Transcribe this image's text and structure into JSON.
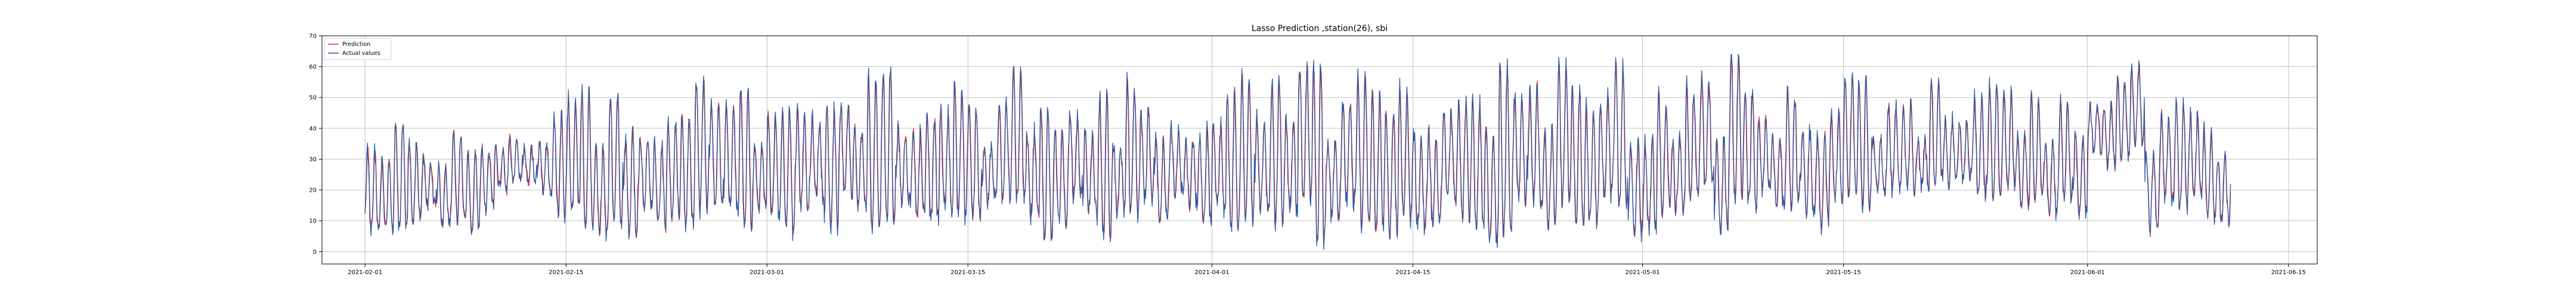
{
  "chart_data": {
    "type": "line",
    "title": "Lasso Prediction ,station(26), sbi",
    "xlabel": "",
    "ylabel": "",
    "grid": true,
    "legend_placement": "top-left",
    "x_range": [
      "2021-01-29",
      "2021-06-17"
    ],
    "y_range": [
      -4,
      70
    ],
    "x_ticks": [
      "2021-02-01",
      "2021-02-15",
      "2021-03-01",
      "2021-03-15",
      "2021-04-01",
      "2021-04-15",
      "2021-05-01",
      "2021-05-15",
      "2021-06-01",
      "2021-06-15"
    ],
    "y_ticks": [
      0,
      10,
      20,
      30,
      40,
      50,
      60,
      70
    ],
    "data_start": "2021-02-01",
    "data_end": "2021-06-11",
    "colors": {
      "prediction": "#e8272a",
      "actual": "#2a5aa5"
    },
    "series": [
      {
        "name": "Prediction",
        "color": "#e8272a"
      },
      {
        "name": "Actual values",
        "color": "#2a5aa5"
      }
    ],
    "segments": [
      {
        "start": "2021-02-01",
        "end": "2021-02-10",
        "min": 3,
        "max": 45
      },
      {
        "start": "2021-02-10",
        "end": "2021-02-14",
        "min": 15,
        "max": 48
      },
      {
        "start": "2021-02-14",
        "end": "2021-03-04",
        "min": 2,
        "max": 57
      },
      {
        "start": "2021-03-04",
        "end": "2021-04-07",
        "min": 2,
        "max": 60
      },
      {
        "start": "2021-04-07",
        "end": "2021-05-05",
        "min": 0,
        "max": 63
      },
      {
        "start": "2021-05-05",
        "end": "2021-05-15",
        "min": 3,
        "max": 64
      },
      {
        "start": "2021-05-15",
        "end": "2021-06-01",
        "min": 10,
        "max": 58
      },
      {
        "start": "2021-06-01",
        "end": "2021-06-05",
        "min": 25,
        "max": 62
      },
      {
        "start": "2021-06-05",
        "end": "2021-06-11",
        "min": 5,
        "max": 50
      }
    ]
  }
}
